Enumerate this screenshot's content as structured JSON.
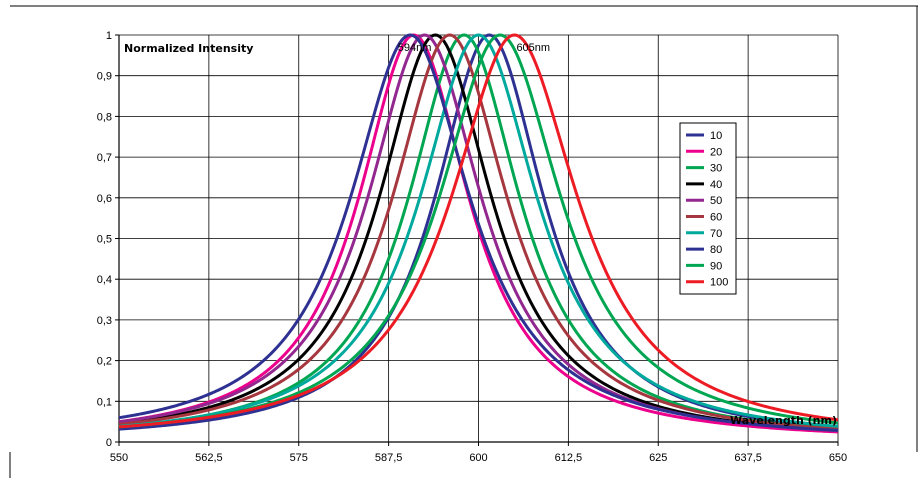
{
  "chart_data": {
    "type": "line",
    "ylabel": "Normalized Intensity",
    "xlabel": "Wavelength (nm)",
    "xlim": [
      550,
      650
    ],
    "ylim": [
      0,
      1
    ],
    "x_ticks": [
      "550",
      "562,5",
      "575",
      "587,5",
      "600",
      "612,5",
      "625",
      "637,5",
      "650"
    ],
    "y_ticks": [
      "0",
      "0,1",
      "0,2",
      "0,3",
      "0,4",
      "0,5",
      "0,6",
      "0,7",
      "0,8",
      "0,9",
      "1"
    ],
    "grid": true,
    "legend_position": "right",
    "annotations": [
      {
        "text": "594nm",
        "x": 594,
        "y": 1.0
      },
      {
        "text": "605nm",
        "x": 605,
        "y": 1.0
      }
    ],
    "series": [
      {
        "name": "10",
        "color": "#2e3192",
        "peak": 601.5,
        "width": 9.3
      },
      {
        "name": "20",
        "color": "#ec008c",
        "peak": 591.0,
        "width": 9.4
      },
      {
        "name": "30",
        "color": "#00a651",
        "peak": 598.0,
        "width": 9.5
      },
      {
        "name": "40",
        "color": "#000000",
        "peak": 594.0,
        "width": 9.6
      },
      {
        "name": "50",
        "color": "#92278f",
        "peak": 592.5,
        "width": 9.7
      },
      {
        "name": "60",
        "color": "#a6373f",
        "peak": 596.0,
        "width": 9.8
      },
      {
        "name": "70",
        "color": "#00a99d",
        "peak": 600.0,
        "width": 10.0
      },
      {
        "name": "80",
        "color": "#2e3192",
        "peak": 590.5,
        "width": 10.2
      },
      {
        "name": "90",
        "color": "#00a651",
        "peak": 603.0,
        "width": 10.4
      },
      {
        "name": "100",
        "color": "#ed1c24",
        "peak": 605.0,
        "width": 10.8
      }
    ]
  }
}
